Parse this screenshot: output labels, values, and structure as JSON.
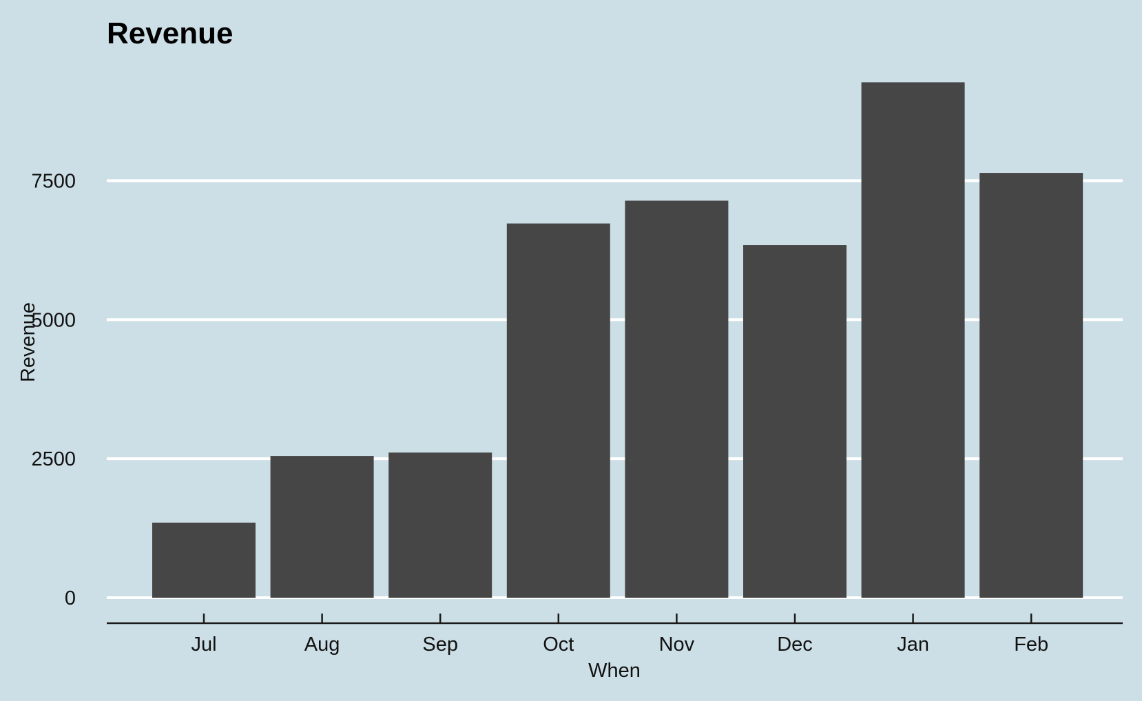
{
  "colors": {
    "background": "#cddfe6",
    "bar": "#464646",
    "gridline": "#ffffff",
    "axis_line": "#1a1a1a",
    "text": "#111111"
  },
  "chart_data": {
    "type": "bar",
    "title": "Revenue",
    "xlabel": "When",
    "ylabel": "Revenue",
    "categories": [
      "Jul",
      "Aug",
      "Sep",
      "Oct",
      "Nov",
      "Dec",
      "Jan",
      "Feb"
    ],
    "values": [
      1350,
      2550,
      2610,
      6730,
      7140,
      6340,
      9270,
      7640
    ],
    "ylim": [
      0,
      9270
    ],
    "yticks": [
      0,
      2500,
      5000,
      7500
    ],
    "ytick_labels": [
      "0",
      "2500",
      "5000",
      "7500"
    ],
    "grid": "horizontal major",
    "legend": "none"
  }
}
